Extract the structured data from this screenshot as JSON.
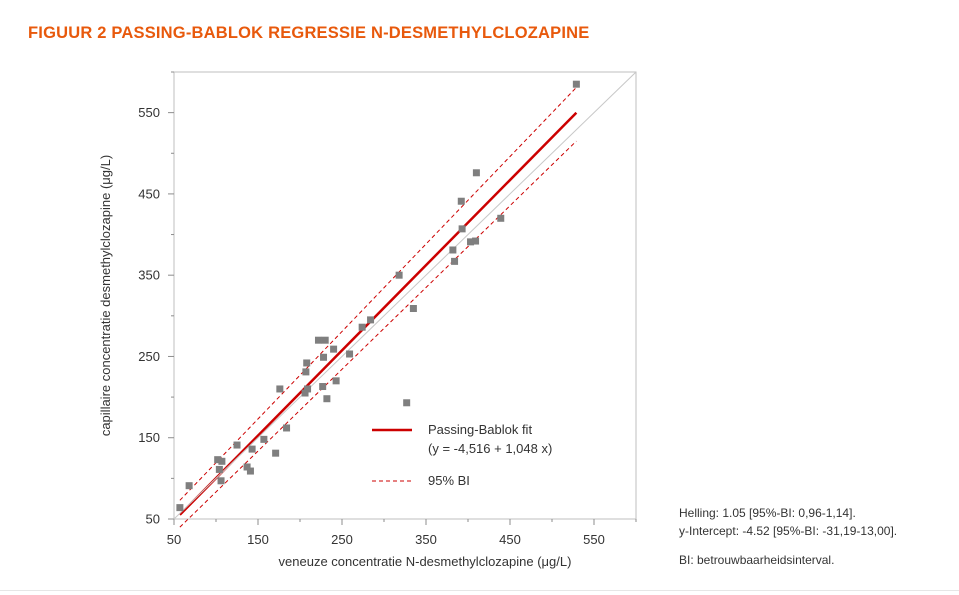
{
  "figure_title": "FIGUUR 2  PASSING-BABLOK REGRESSIE N-DESMETHYLCLOZAPINE",
  "notes": {
    "slope": "Helling: 1.05 [95%-BI: 0,96-1,14].",
    "intercept": "y-Intercept: -4.52 [95%-BI: -31,19-13,00].",
    "abbreviation": "BI: betrouwbaarheidsinterval."
  },
  "colors": {
    "title": "#e8590c",
    "fit_line": "#cc0000",
    "ci_line": "#cc0000",
    "identity_line": "#c8c8c8",
    "points": "#7f7f7f",
    "frame": "#bfbfbf"
  },
  "chart_data": {
    "type": "scatter",
    "xlabel": "veneuze concentratie N-desmethylclozapine (μg/L)",
    "ylabel": "capillaire concentratie desmethylclozapine (μg/L)",
    "xlim": [
      50,
      600
    ],
    "ylim": [
      50,
      600
    ],
    "xticks": [
      50,
      150,
      250,
      350,
      450,
      550
    ],
    "yticks": [
      50,
      150,
      250,
      350,
      450,
      550
    ],
    "x_tick_labels": [
      "50",
      "150",
      "250",
      "350",
      "450",
      "550"
    ],
    "y_tick_labels": [
      "50",
      "150",
      "250",
      "350",
      "450",
      "550"
    ],
    "grid": false,
    "points": [
      {
        "x": 57,
        "y": 64
      },
      {
        "x": 68,
        "y": 91
      },
      {
        "x": 102,
        "y": 123
      },
      {
        "x": 104,
        "y": 111
      },
      {
        "x": 106,
        "y": 97
      },
      {
        "x": 107,
        "y": 121
      },
      {
        "x": 125,
        "y": 141
      },
      {
        "x": 137,
        "y": 114
      },
      {
        "x": 141,
        "y": 109
      },
      {
        "x": 143,
        "y": 136
      },
      {
        "x": 157,
        "y": 148
      },
      {
        "x": 171,
        "y": 131
      },
      {
        "x": 176,
        "y": 210
      },
      {
        "x": 184,
        "y": 162
      },
      {
        "x": 206,
        "y": 205
      },
      {
        "x": 207,
        "y": 231
      },
      {
        "x": 208,
        "y": 242
      },
      {
        "x": 209,
        "y": 210
      },
      {
        "x": 222,
        "y": 270
      },
      {
        "x": 227,
        "y": 213
      },
      {
        "x": 228,
        "y": 249
      },
      {
        "x": 230,
        "y": 270
      },
      {
        "x": 232,
        "y": 198
      },
      {
        "x": 240,
        "y": 259
      },
      {
        "x": 243,
        "y": 220
      },
      {
        "x": 259,
        "y": 253
      },
      {
        "x": 274,
        "y": 286
      },
      {
        "x": 284,
        "y": 295
      },
      {
        "x": 318,
        "y": 350
      },
      {
        "x": 327,
        "y": 193
      },
      {
        "x": 335,
        "y": 309
      },
      {
        "x": 382,
        "y": 381
      },
      {
        "x": 384,
        "y": 367
      },
      {
        "x": 392,
        "y": 441
      },
      {
        "x": 393,
        "y": 407
      },
      {
        "x": 403,
        "y": 391
      },
      {
        "x": 409,
        "y": 392
      },
      {
        "x": 410,
        "y": 476
      },
      {
        "x": 439,
        "y": 420
      },
      {
        "x": 529,
        "y": 585
      }
    ],
    "lines": [
      {
        "name": "Passing-Bablok fit",
        "label2": "(y = -4,516 + 1,048 x)",
        "style": "solid",
        "x": [
          57,
          529
        ],
        "y": [
          55.2,
          549.9
        ]
      },
      {
        "name": "95% BI",
        "style": "dashed",
        "x": [
          57,
          529
        ],
        "y": [
          73.0,
          581.0
        ]
      },
      {
        "style": "dashed",
        "x": [
          57,
          529
        ],
        "y": [
          40.0,
          515.0
        ]
      },
      {
        "style": "identity",
        "x": [
          50,
          600
        ],
        "y": [
          50,
          600
        ]
      }
    ],
    "legend": {
      "position": "bottom-right"
    }
  }
}
